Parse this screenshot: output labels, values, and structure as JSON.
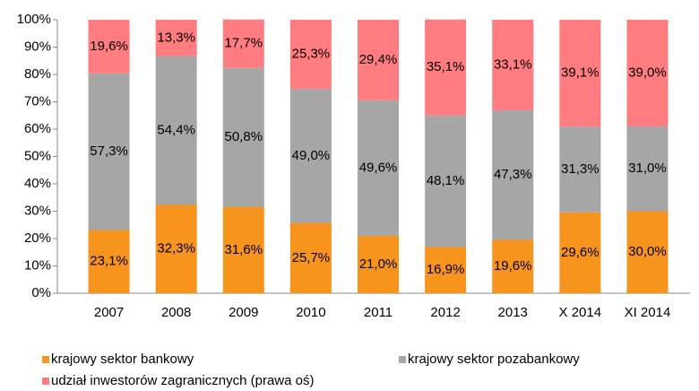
{
  "chart_data": {
    "type": "stacked_bar",
    "categories": [
      "2007",
      "2008",
      "2009",
      "2010",
      "2011",
      "2012",
      "2013",
      "X 2014",
      "XI 2014"
    ],
    "series": [
      {
        "name": "krajowy sektor bankowy",
        "color": "#f7941d",
        "values": [
          23.1,
          32.3,
          31.6,
          25.7,
          21.0,
          16.9,
          19.6,
          29.6,
          30.0
        ],
        "value_labels": [
          "23,1%",
          "32,3%",
          "31,6%",
          "25,7%",
          "21,0%",
          "16,9%",
          "19,6%",
          "29,6%",
          "30,0%"
        ]
      },
      {
        "name": "krajowy sektor pozabankowy",
        "color": "#a6a6a6",
        "values": [
          57.3,
          54.4,
          50.8,
          49.0,
          49.6,
          48.1,
          47.3,
          31.3,
          31.0
        ],
        "value_labels": [
          "57,3%",
          "54,4%",
          "50,8%",
          "49,0%",
          "49,6%",
          "48,1%",
          "47,3%",
          "31,3%",
          "31,0%"
        ]
      },
      {
        "name": "udział inwestorów zagranicznych (prawa oś)",
        "color": "#ff7c80",
        "values": [
          19.6,
          13.3,
          17.7,
          25.3,
          29.4,
          35.1,
          33.1,
          39.1,
          39.0
        ],
        "value_labels": [
          "19,6%",
          "13,3%",
          "17,7%",
          "25,3%",
          "29,4%",
          "35,1%",
          "33,1%",
          "39,1%",
          "39,0%"
        ]
      }
    ],
    "ylim": [
      0,
      100
    ],
    "yticks": [
      {
        "value": 0,
        "label": "0%"
      },
      {
        "value": 10,
        "label": "10%"
      },
      {
        "value": 20,
        "label": "20%"
      },
      {
        "value": 30,
        "label": "30%"
      },
      {
        "value": 40,
        "label": "40%"
      },
      {
        "value": 50,
        "label": "50%"
      },
      {
        "value": 60,
        "label": "60%"
      },
      {
        "value": 70,
        "label": "70%"
      },
      {
        "value": 80,
        "label": "80%"
      },
      {
        "value": 90,
        "label": "90%"
      },
      {
        "value": 100,
        "label": "100%"
      }
    ],
    "grid": false,
    "legend": "bottom"
  }
}
